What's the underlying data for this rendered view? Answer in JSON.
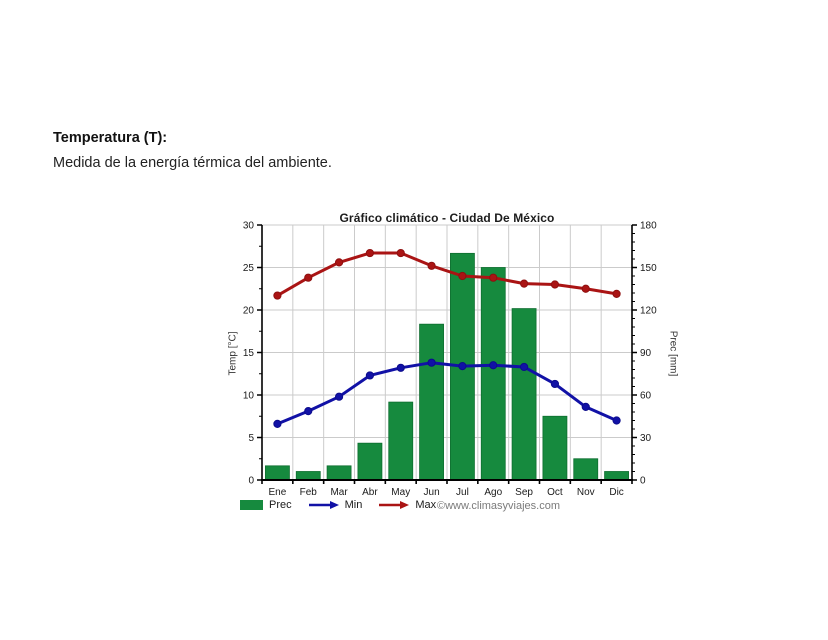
{
  "page": {
    "heading": "Temperatura (T):",
    "subheading": "Medida de la energía térmica del ambiente."
  },
  "chart_data": {
    "type": "bar+line",
    "title": "Gráfico climático - Ciudad De México",
    "categories": [
      "Ene",
      "Feb",
      "Mar",
      "Abr",
      "May",
      "Jun",
      "Jul",
      "Ago",
      "Sep",
      "Oct",
      "Nov",
      "Dic"
    ],
    "series": [
      {
        "name": "Prec",
        "type": "bar",
        "axis": "right",
        "unit": "mm",
        "color": "#168a3e",
        "border": "#0d6e2f",
        "values": [
          10,
          6,
          10,
          26,
          55,
          110,
          160,
          150,
          121,
          45,
          15,
          6
        ]
      },
      {
        "name": "Min",
        "type": "line",
        "axis": "left",
        "unit": "°C",
        "color": "#1111a6",
        "marker_color": "#0c0c8c",
        "values": [
          6.6,
          8.1,
          9.8,
          12.3,
          13.2,
          13.8,
          13.4,
          13.5,
          13.3,
          11.3,
          8.6,
          7.0
        ]
      },
      {
        "name": "Max",
        "type": "line",
        "axis": "left",
        "unit": "°C",
        "color": "#aa1414",
        "marker_color": "#8f0f0f",
        "values": [
          21.7,
          23.8,
          25.6,
          26.7,
          26.7,
          25.2,
          24.0,
          23.8,
          23.1,
          23.0,
          22.5,
          21.9
        ]
      }
    ],
    "left_axis": {
      "label": "Temp [°C]",
      "min": 0,
      "max": 30,
      "tick_step": 5,
      "minor_step": 2.5,
      "ticks": [
        0,
        5,
        10,
        15,
        20,
        25,
        30
      ]
    },
    "right_axis": {
      "label": "Prec [mm]",
      "min": 0,
      "max": 180,
      "tick_step": 30,
      "minor_step": 6,
      "ticks": [
        0,
        30,
        60,
        90,
        120,
        150,
        180
      ]
    },
    "grid": true,
    "grid_color": "#cbcbcb",
    "axis_color": "#000000",
    "text_color": "#1a1a1a",
    "legend": {
      "position": "bottom",
      "entries": [
        "Prec",
        "Min",
        "Max"
      ]
    },
    "watermark": "©www.climasyviajes.com"
  }
}
